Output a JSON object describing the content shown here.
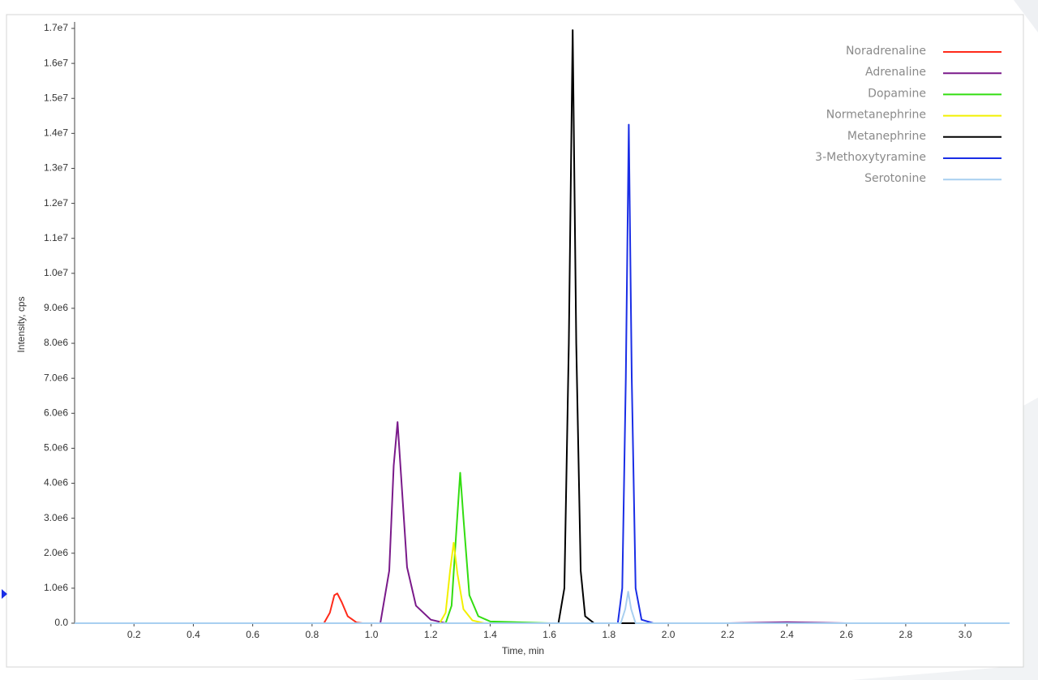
{
  "chart_data": {
    "type": "line",
    "x_label": "Time, min",
    "y_label": "Intensity, cps",
    "xlim": [
      0,
      3.15
    ],
    "ylim": [
      0,
      17000000
    ],
    "xticks": [
      0.2,
      0.4,
      0.6,
      0.8,
      {
        "value": 1,
        "label": "1.0"
      },
      1.2,
      1.4,
      1.6,
      1.8,
      {
        "value": 2,
        "label": "2.0"
      },
      2.2,
      2.4,
      2.6,
      2.8,
      {
        "value": 3,
        "label": "3.0"
      }
    ],
    "yticks": [
      {
        "value": 0,
        "label": "0.0"
      },
      {
        "value": 1000000,
        "label": "1.0e6"
      },
      {
        "value": 2000000,
        "label": "2.0e6"
      },
      {
        "value": 3000000,
        "label": "3.0e6"
      },
      {
        "value": 4000000,
        "label": "4.0e6"
      },
      {
        "value": 5000000,
        "label": "5.0e6"
      },
      {
        "value": 6000000,
        "label": "6.0e6"
      },
      {
        "value": 7000000,
        "label": "7.0e6"
      },
      {
        "value": 8000000,
        "label": "8.0e6"
      },
      {
        "value": 9000000,
        "label": "9.0e6"
      },
      {
        "value": 10000000,
        "label": "1.0e7"
      },
      {
        "value": 11000000,
        "label": "1.1e7"
      },
      {
        "value": 12000000,
        "label": "1.2e7"
      },
      {
        "value": 13000000,
        "label": "1.3e7"
      },
      {
        "value": 14000000,
        "label": "1.4e7"
      },
      {
        "value": 15000000,
        "label": "1.5e7"
      },
      {
        "value": 16000000,
        "label": "1.6e7"
      },
      {
        "value": 17000000,
        "label": "1.7e7"
      }
    ],
    "legend": "top-right",
    "series": [
      {
        "name": "Noradrenaline",
        "color": "#ff2a1a",
        "x": [
          0,
          0.84,
          0.86,
          0.875,
          0.885,
          0.9,
          0.92,
          0.95,
          0.97,
          3.15
        ],
        "values": [
          0,
          0,
          300000,
          800000,
          850000,
          600000,
          200000,
          20000,
          0,
          0
        ]
      },
      {
        "name": "Adrenaline",
        "color": "#7a1a8a",
        "x": [
          0,
          1.03,
          1.06,
          1.075,
          1.088,
          1.1,
          1.12,
          1.15,
          1.2,
          1.25,
          2.2,
          2.4,
          2.6,
          3.15
        ],
        "values": [
          0,
          0,
          1500000,
          4500000,
          5750000,
          4200000,
          1600000,
          500000,
          100000,
          0,
          0,
          30000,
          0,
          0
        ]
      },
      {
        "name": "Dopamine",
        "color": "#33dd11",
        "x": [
          0,
          1.25,
          1.27,
          1.285,
          1.299,
          1.31,
          1.33,
          1.36,
          1.4,
          1.6,
          3.15
        ],
        "values": [
          0,
          0,
          500000,
          2500000,
          4300000,
          3000000,
          800000,
          200000,
          50000,
          0,
          0
        ]
      },
      {
        "name": "Normetanephrine",
        "color": "#f2f000",
        "x": [
          0,
          1.23,
          1.25,
          1.265,
          1.277,
          1.29,
          1.31,
          1.34,
          1.38,
          3.15
        ],
        "values": [
          0,
          0,
          300000,
          1500000,
          2300000,
          1400000,
          400000,
          80000,
          0,
          0
        ]
      },
      {
        "name": "Metanephrine",
        "color": "#000000",
        "x": [
          0,
          1.63,
          1.65,
          1.665,
          1.678,
          1.69,
          1.705,
          1.72,
          1.75,
          3.15
        ],
        "values": [
          0,
          0,
          1000000,
          8000000,
          16950000,
          8000000,
          1500000,
          200000,
          0,
          0
        ]
      },
      {
        "name": "3-Methoxytyramine",
        "color": "#1a2ee6",
        "x": [
          0,
          1.83,
          1.845,
          1.857,
          1.867,
          1.877,
          1.89,
          1.91,
          1.95,
          3.15
        ],
        "values": [
          0,
          0,
          1000000,
          7000000,
          14250000,
          7000000,
          1000000,
          100000,
          0,
          0
        ]
      },
      {
        "name": "Serotonine",
        "color": "#a8cff0",
        "x": [
          0,
          1.84,
          1.855,
          1.865,
          1.875,
          1.89,
          3.15
        ],
        "values": [
          0,
          0,
          400000,
          900000,
          400000,
          0,
          0
        ]
      }
    ]
  }
}
